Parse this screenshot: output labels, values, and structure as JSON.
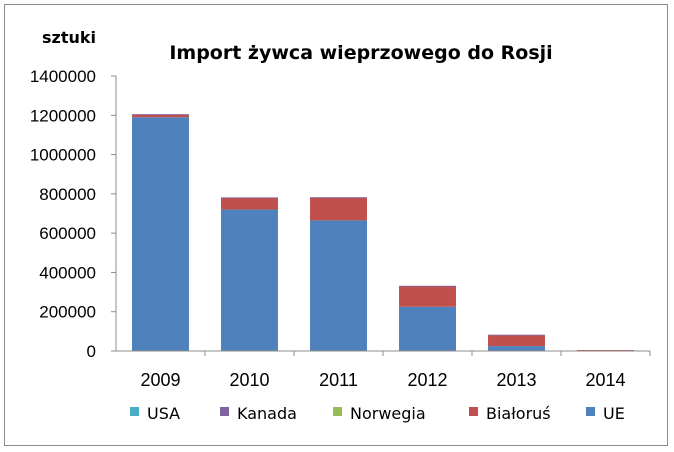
{
  "chart_data": {
    "type": "bar",
    "stacked": true,
    "title": "Import żywca wieprzowego do Rosji",
    "ylabel": "sztuki",
    "xlabel": "",
    "ylim": [
      0,
      1400000
    ],
    "yticks": [
      "0",
      "200000",
      "400000",
      "600000",
      "800000",
      "1000000",
      "1200000",
      "1400000"
    ],
    "ytick_values": [
      0,
      200000,
      400000,
      600000,
      800000,
      1000000,
      1200000,
      1400000
    ],
    "categories": [
      "2009",
      "2010",
      "2011",
      "2012",
      "2013",
      "2014"
    ],
    "grid": false,
    "legend_position": "bottom",
    "series": [
      {
        "name": "UE",
        "color": "#4f81bd",
        "values": [
          1190000,
          720000,
          665000,
          225000,
          25000,
          3000
        ]
      },
      {
        "name": "Białoruś",
        "color": "#c0504d",
        "values": [
          12000,
          60000,
          115000,
          105000,
          55000,
          2000
        ]
      },
      {
        "name": "Norwegia",
        "color": "#9bbb59",
        "values": [
          0,
          0,
          0,
          0,
          0,
          0
        ]
      },
      {
        "name": "Kanada",
        "color": "#8064a2",
        "values": [
          4000,
          2000,
          3000,
          2000,
          3000,
          0
        ]
      },
      {
        "name": "USA",
        "color": "#4bacc6",
        "values": [
          0,
          0,
          0,
          0,
          0,
          0
        ]
      }
    ],
    "legend_order": [
      "USA",
      "Kanada",
      "Norwegia",
      "Białoruś",
      "UE"
    ]
  }
}
